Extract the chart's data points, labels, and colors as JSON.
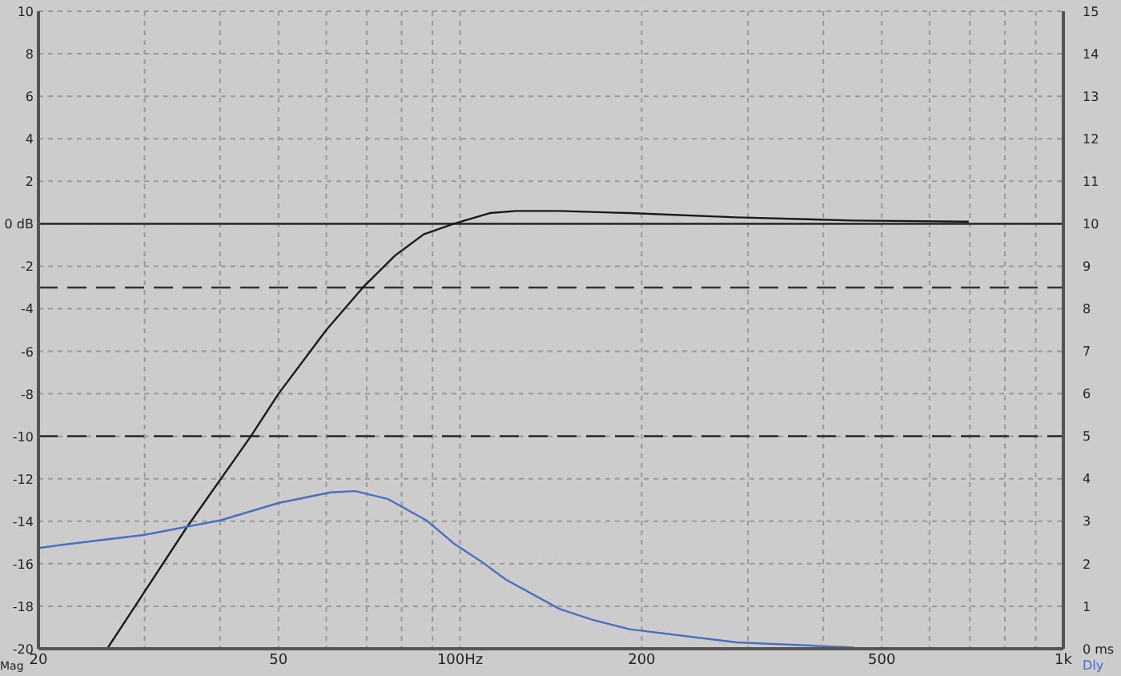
{
  "chart_data": {
    "type": "line",
    "ylabel": "Mag",
    "y2label": "Dly",
    "series": [
      {
        "color": "#1a1a1a",
        "x": [
          26,
          35.2,
          45,
          50,
          60,
          69,
          78,
          87,
          97.6,
          112,
          124,
          146,
          191,
          287,
          450,
          697
        ],
        "values": [
          -20,
          -14.3,
          -10,
          -8,
          -5,
          -3,
          -1.5,
          -0.5,
          0,
          0.5,
          0.6,
          0.6,
          0.5,
          0.3,
          0.15,
          0.1
        ]
      },
      {
        "color": "#4a6fc0",
        "axis": "y2",
        "x": [
          20,
          22,
          30,
          40,
          50,
          61,
          67,
          76,
          88,
          97.6,
          108,
          119,
          146,
          165,
          191,
          287,
          450
        ],
        "values": [
          2.37,
          2.45,
          2.68,
          3.02,
          3.43,
          3.68,
          3.71,
          3.52,
          3.02,
          2.48,
          2.07,
          1.63,
          0.94,
          0.69,
          0.46,
          0.15,
          0.03
        ]
      }
    ],
    "log": "x",
    "xlim": [
      20,
      1000
    ],
    "xticks": [
      20,
      {
        "value": 30,
        "label": null
      },
      {
        "value": 40,
        "label": null
      },
      50,
      {
        "value": 60,
        "label": null
      },
      {
        "value": 70,
        "label": null
      },
      {
        "value": 80,
        "label": null
      },
      {
        "value": 90,
        "label": null
      },
      {
        "value": 100,
        "label": "100Hz"
      },
      200,
      {
        "value": 300,
        "label": null
      },
      {
        "value": 400,
        "label": null
      },
      500,
      {
        "value": 600,
        "label": null
      },
      {
        "value": 700,
        "label": null
      },
      {
        "value": 800,
        "label": null
      },
      {
        "value": 900,
        "label": null
      },
      {
        "value": 1000,
        "label": "1k"
      }
    ],
    "ylim": [
      -20,
      10
    ],
    "yticks": [
      -20,
      -18,
      -16,
      -14,
      -12,
      -10,
      -8,
      -6,
      -4,
      -2,
      {
        "value": 0,
        "label": "0 dB"
      },
      2,
      4,
      6,
      8,
      10
    ],
    "y2lim": [
      0,
      15
    ],
    "y2ticks": [
      {
        "value": 0,
        "label": "0 ms"
      },
      1,
      2,
      3,
      4,
      5,
      6,
      7,
      8,
      9,
      10,
      11,
      12,
      13,
      14,
      15
    ],
    "ref_lines": [
      {
        "axis": "y",
        "value": 0,
        "color": "#333333",
        "line_style": "solid"
      },
      {
        "axis": "y",
        "value": -3,
        "color": "#333333",
        "line_style": "dashed"
      },
      {
        "axis": "y",
        "value": -10,
        "color": "#333333",
        "line_style": "dashed"
      }
    ],
    "grid": true,
    "legend": false,
    "marker": "none",
    "line_style": "solid"
  }
}
